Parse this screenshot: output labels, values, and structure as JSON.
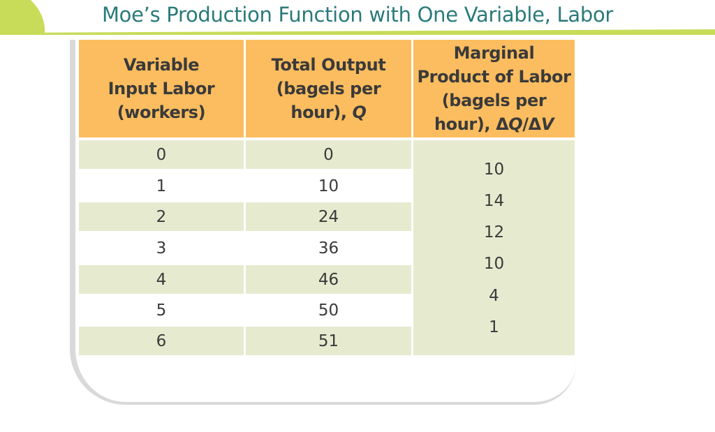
{
  "slide": {
    "title": "Moe’s Production Function with One Variable, Labor",
    "accent_color": "#c8dc5a",
    "title_color": "#2a7a7a"
  },
  "table": {
    "header_color": "#fbbd5f",
    "shade_color": "#e6ebd0",
    "headers": {
      "labor_line1": "Variable",
      "labor_line2": "Input Labor",
      "labor_line3": "(workers)",
      "output_line1": "Total Output",
      "output_line2": "(bagels per",
      "output_line3_prefix": "hour), ",
      "output_line3_symbol": "Q",
      "mpl_line1": "Marginal",
      "mpl_line2": "Product of Labor",
      "mpl_line3": "(bagels per",
      "mpl_line4_prefix": "hour), Δ",
      "mpl_line4_q": "Q",
      "mpl_line4_mid": "/Δ",
      "mpl_line4_v": "V"
    },
    "rows": [
      {
        "labor": "0",
        "output": "0"
      },
      {
        "labor": "1",
        "output": "10"
      },
      {
        "labor": "2",
        "output": "24"
      },
      {
        "labor": "3",
        "output": "36"
      },
      {
        "labor": "4",
        "output": "46"
      },
      {
        "labor": "5",
        "output": "50"
      },
      {
        "labor": "6",
        "output": "51"
      }
    ],
    "marginal_products": [
      "10",
      "14",
      "12",
      "10",
      "4",
      "1"
    ]
  }
}
